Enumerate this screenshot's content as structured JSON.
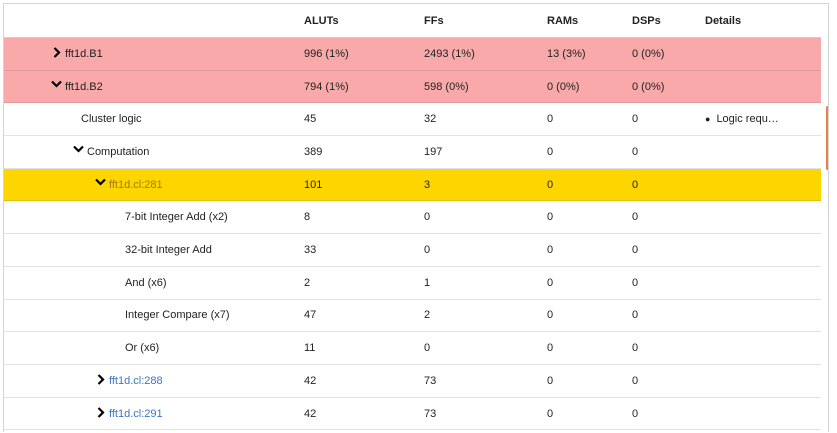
{
  "columns": {
    "aluts": "ALUTs",
    "ffs": "FFs",
    "rams": "RAMs",
    "dsps": "DSPs",
    "details": "Details"
  },
  "rows": [
    {
      "name": "fft1d.B1",
      "indent": 0,
      "toggle": "collapsed",
      "style": "red",
      "link": false,
      "aluts": "996 (1%)",
      "ffs": "2493 (1%)",
      "rams": "13 (3%)",
      "dsps": "0 (0%)",
      "details": ""
    },
    {
      "name": "fft1d.B2",
      "indent": 0,
      "toggle": "expanded",
      "style": "red",
      "link": false,
      "aluts": "794 (1%)",
      "ffs": "598 (0%)",
      "rams": "0 (0%)",
      "dsps": "0 (0%)",
      "details": ""
    },
    {
      "name": "Cluster logic",
      "indent": 1,
      "toggle": "none",
      "style": "",
      "link": false,
      "aluts": "45",
      "ffs": "32",
      "rams": "0",
      "dsps": "0",
      "details": "Logic requ…"
    },
    {
      "name": "Computation",
      "indent": 1,
      "toggle": "expanded",
      "style": "",
      "link": false,
      "aluts": "389",
      "ffs": "197",
      "rams": "0",
      "dsps": "0",
      "details": ""
    },
    {
      "name": "fft1d.cl:281",
      "indent": 2,
      "toggle": "expanded",
      "style": "yellow",
      "link": true,
      "aluts": "101",
      "ffs": "3",
      "rams": "0",
      "dsps": "0",
      "details": ""
    },
    {
      "name": "7-bit Integer Add (x2)",
      "indent": 3,
      "toggle": "none",
      "style": "",
      "link": false,
      "aluts": "8",
      "ffs": "0",
      "rams": "0",
      "dsps": "0",
      "details": ""
    },
    {
      "name": "32-bit Integer Add",
      "indent": 3,
      "toggle": "none",
      "style": "",
      "link": false,
      "aluts": "33",
      "ffs": "0",
      "rams": "0",
      "dsps": "0",
      "details": ""
    },
    {
      "name": "And (x6)",
      "indent": 3,
      "toggle": "none",
      "style": "",
      "link": false,
      "aluts": "2",
      "ffs": "1",
      "rams": "0",
      "dsps": "0",
      "details": ""
    },
    {
      "name": "Integer Compare (x7)",
      "indent": 3,
      "toggle": "none",
      "style": "",
      "link": false,
      "aluts": "47",
      "ffs": "2",
      "rams": "0",
      "dsps": "0",
      "details": ""
    },
    {
      "name": "Or (x6)",
      "indent": 3,
      "toggle": "none",
      "style": "",
      "link": false,
      "aluts": "11",
      "ffs": "0",
      "rams": "0",
      "dsps": "0",
      "details": ""
    },
    {
      "name": "fft1d.cl:288",
      "indent": 2,
      "toggle": "collapsed",
      "style": "",
      "link": true,
      "aluts": "42",
      "ffs": "73",
      "rams": "0",
      "dsps": "0",
      "details": ""
    },
    {
      "name": "fft1d.cl:291",
      "indent": 2,
      "toggle": "collapsed",
      "style": "",
      "link": true,
      "aluts": "42",
      "ffs": "73",
      "rams": "0",
      "dsps": "0",
      "details": ""
    }
  ]
}
